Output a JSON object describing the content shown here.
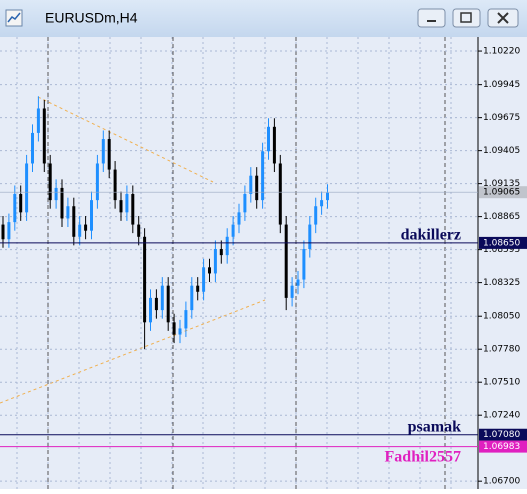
{
  "chart_data": {
    "type": "candlestick",
    "title": "EURUSDm,H4",
    "ylim": [
      1.06636,
      1.10335
    ],
    "yticks": [
      {
        "value": 1.1022,
        "label": "1.10220"
      },
      {
        "value": 1.09945,
        "label": "1.09945"
      },
      {
        "value": 1.09675,
        "label": "1.09675"
      },
      {
        "value": 1.09405,
        "label": "1.09405"
      },
      {
        "value": 1.09135,
        "label": "1.09135"
      },
      {
        "value": 1.08865,
        "label": "1.08865"
      },
      {
        "value": 1.08595,
        "label": "1.08595"
      },
      {
        "value": 1.08325,
        "label": "1.08325"
      },
      {
        "value": 1.0805,
        "label": "1.08050"
      },
      {
        "value": 1.0778,
        "label": "1.07780"
      },
      {
        "value": 1.0751,
        "label": "1.07510"
      },
      {
        "value": 1.0724,
        "label": "1.07240"
      },
      {
        "value": 1.067,
        "label": "1.06700"
      }
    ],
    "grid": true,
    "bull_color": "#1e8fff",
    "bear_color": "#000000",
    "open": [
      1.088,
      1.0868,
      1.0882,
      1.0905,
      1.089,
      1.093,
      1.0955,
      1.0975,
      1.093,
      1.09,
      1.091,
      1.0885,
      1.0895,
      1.087,
      1.088,
      1.0875,
      1.09,
      1.093,
      1.095,
      1.0925,
      1.09,
      1.089,
      1.0905,
      1.088,
      1.087,
      1.08,
      1.082,
      1.081,
      1.083,
      1.08,
      1.079,
      1.0795,
      1.081,
      1.083,
      1.0825,
      1.0845,
      1.084,
      1.086,
      1.0855,
      1.087,
      1.088,
      1.089,
      1.0905,
      1.092,
      1.09,
      1.094,
      1.096,
      1.093,
      1.088,
      1.082,
      1.083,
      1.0835,
      1.086,
      1.088,
      1.0895,
      1.09
    ],
    "high": [
      1.0887,
      1.0889,
      1.0912,
      1.0912,
      1.0937,
      1.0962,
      1.0985,
      1.0982,
      1.0937,
      1.0917,
      1.0917,
      1.0902,
      1.0902,
      1.0887,
      1.0887,
      1.0907,
      1.0937,
      1.0957,
      1.0957,
      1.0932,
      1.0907,
      1.0912,
      1.0912,
      1.0887,
      1.0877,
      1.0827,
      1.0827,
      1.0837,
      1.0837,
      1.0807,
      1.0802,
      1.0817,
      1.0837,
      1.0837,
      1.0852,
      1.0852,
      1.0867,
      1.0867,
      1.0877,
      1.0887,
      1.0897,
      1.0912,
      1.0927,
      1.0927,
      1.0947,
      1.0967,
      1.0967,
      1.0937,
      1.0887,
      1.0837,
      1.0842,
      1.0867,
      1.0887,
      1.0902,
      1.0907,
      1.0913
    ],
    "low": [
      1.0861,
      1.0861,
      1.0875,
      1.0883,
      1.0883,
      1.0923,
      1.0948,
      1.0923,
      1.0893,
      1.0893,
      1.0878,
      1.0878,
      1.0863,
      1.0863,
      1.0868,
      1.0868,
      1.0893,
      1.0923,
      1.0918,
      1.0893,
      1.0883,
      1.0883,
      1.0873,
      1.0863,
      1.0778,
      1.0793,
      1.0803,
      1.0803,
      1.0793,
      1.0783,
      1.0783,
      1.0788,
      1.0803,
      1.0818,
      1.0818,
      1.0833,
      1.0833,
      1.0848,
      1.0848,
      1.0863,
      1.0873,
      1.0883,
      1.0898,
      1.0893,
      1.0893,
      1.0933,
      1.0923,
      1.0873,
      1.081,
      1.0813,
      1.0823,
      1.0828,
      1.0853,
      1.0873,
      1.0888,
      1.0893
    ],
    "close": [
      1.0868,
      1.0882,
      1.0905,
      1.089,
      1.093,
      1.0955,
      1.0975,
      1.093,
      1.09,
      1.091,
      1.0885,
      1.0895,
      1.087,
      1.088,
      1.0875,
      1.09,
      1.093,
      1.095,
      1.0925,
      1.09,
      1.089,
      1.0905,
      1.088,
      1.087,
      1.08,
      1.082,
      1.081,
      1.083,
      1.08,
      1.079,
      1.0795,
      1.081,
      1.083,
      1.0825,
      1.0845,
      1.084,
      1.086,
      1.0855,
      1.087,
      1.088,
      1.089,
      1.0905,
      1.092,
      1.09,
      1.094,
      1.096,
      1.093,
      1.088,
      1.082,
      1.083,
      1.0835,
      1.086,
      1.088,
      1.0895,
      1.09,
      1.0906
    ],
    "last": {
      "value": 1.09065,
      "label": "1.09065"
    },
    "levels": [
      {
        "name": "dakillerz",
        "value": 1.0865,
        "label": "1.08650",
        "color": "#0a0a5a"
      },
      {
        "name": "psamak",
        "value": 1.0708,
        "label": "1.07080",
        "color": "#0a0a5a"
      },
      {
        "name": "Fadhil2557",
        "value": 1.06983,
        "label": "1.06983",
        "color": "#e020c0"
      }
    ]
  }
}
